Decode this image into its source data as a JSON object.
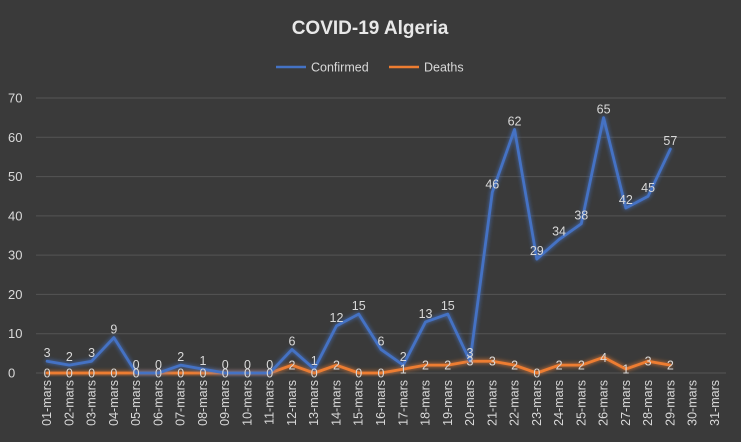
{
  "chart_data": {
    "type": "line",
    "title": "COVID-19 Algeria",
    "xlabel": "",
    "ylabel": "",
    "ylim": [
      0,
      70
    ],
    "yticks": [
      0,
      10,
      20,
      30,
      40,
      50,
      60,
      70
    ],
    "grid": true,
    "legend_position": "top",
    "categories": [
      "01-mars",
      "02-mars",
      "03-mars",
      "04-mars",
      "05-mars",
      "06-mars",
      "07-mars",
      "08-mars",
      "09-mars",
      "10-mars",
      "11-mars",
      "12-mars",
      "13-mars",
      "14-mars",
      "15-mars",
      "16-mars",
      "17-mars",
      "18-mars",
      "19-mars",
      "20-mars",
      "21-mars",
      "22-mars",
      "23-mars",
      "24-mars",
      "25-mars",
      "26-mars",
      "27-mars",
      "28-mars",
      "29-mars",
      "30-mars",
      "31-mars"
    ],
    "series": [
      {
        "name": "Confirmed",
        "color": "#4472c4",
        "values": [
          3,
          2,
          3,
          9,
          0,
          0,
          2,
          1,
          0,
          0,
          0,
          6,
          1,
          12,
          15,
          6,
          2,
          13,
          15,
          3,
          46,
          62,
          29,
          34,
          38,
          65,
          42,
          45,
          57,
          null,
          null
        ]
      },
      {
        "name": "Deaths",
        "color": "#ed7d31",
        "values": [
          0,
          0,
          0,
          0,
          0,
          0,
          0,
          0,
          0,
          0,
          0,
          2,
          0,
          2,
          0,
          0,
          1,
          2,
          2,
          3,
          3,
          2,
          0,
          2,
          2,
          4,
          1,
          3,
          2,
          null,
          null
        ]
      }
    ]
  }
}
